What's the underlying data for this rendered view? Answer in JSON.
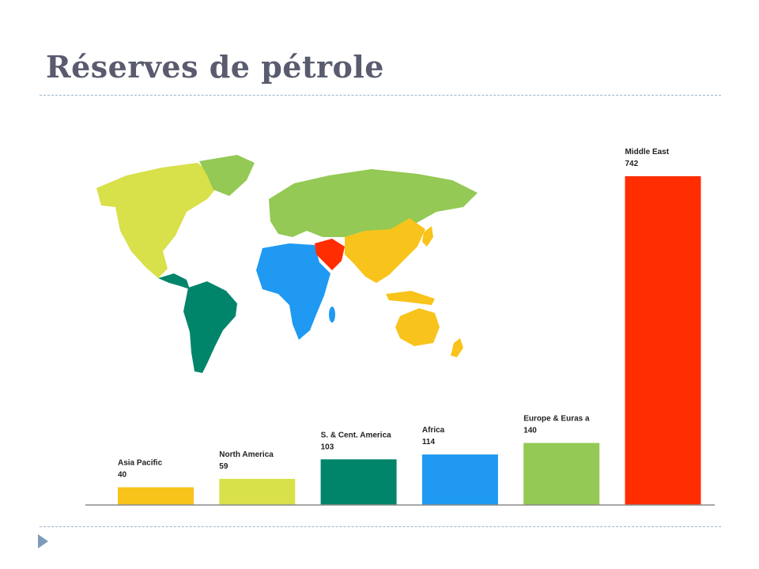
{
  "slide": {
    "title": "Réserves de pétrole"
  },
  "map": {
    "regions": [
      {
        "name": "North America",
        "color": "#d8e04a"
      },
      {
        "name": "S. & Cent. America",
        "color": "#00856a"
      },
      {
        "name": "Europe & Eurasia",
        "color": "#93c954"
      },
      {
        "name": "Africa",
        "color": "#1f99f2"
      },
      {
        "name": "Middle East",
        "color": "#ff2d00"
      },
      {
        "name": "Asia Pacific",
        "color": "#f8c31a"
      }
    ]
  },
  "chart_data": {
    "type": "bar",
    "categories": [
      "Asia Pacific",
      "North America",
      "S. & Cent. America",
      "Africa",
      "Europe & Euras a",
      "Middle East"
    ],
    "values": [
      40,
      59,
      103,
      114,
      140,
      742
    ],
    "value_labels": [
      "40",
      "59",
      "103",
      "114",
      "140",
      "742"
    ],
    "colors": [
      "#f8c31a",
      "#d8e04a",
      "#00856a",
      "#1f99f2",
      "#93c954",
      "#ff2d00"
    ],
    "ylim": [
      0,
      742
    ],
    "grid": false,
    "title": "",
    "xlabel": "",
    "ylabel": ""
  }
}
